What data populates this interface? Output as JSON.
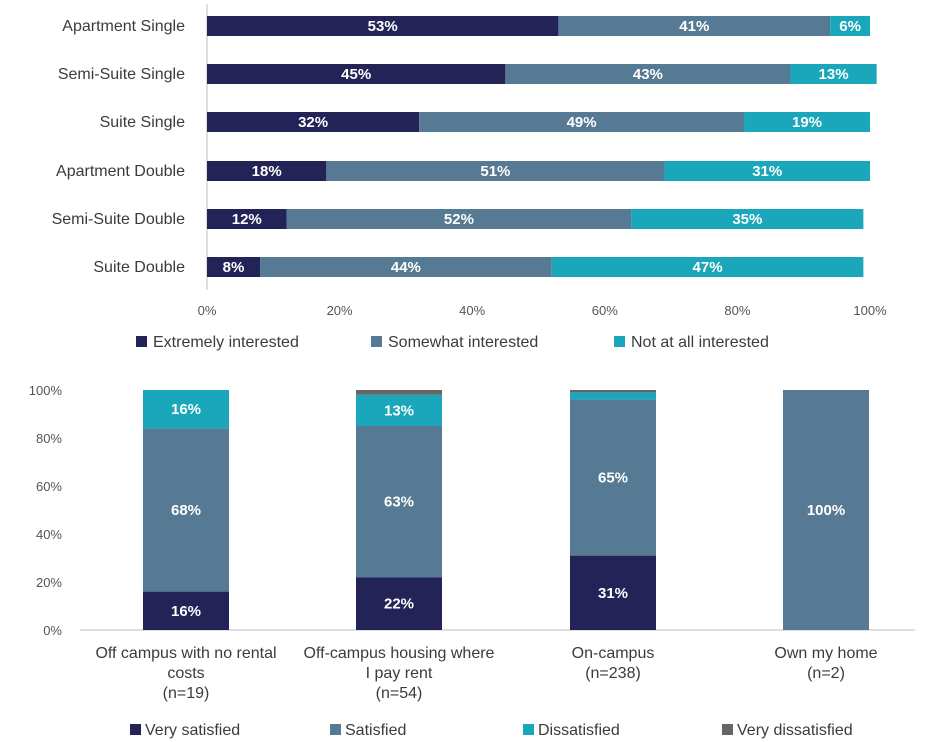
{
  "chart_data": [
    {
      "type": "bar",
      "orientation": "horizontal",
      "stacked": true,
      "categories": [
        "Apartment Single",
        "Semi-Suite Single",
        "Suite Single",
        "Apartment Double",
        "Semi-Suite Double",
        "Suite Double"
      ],
      "series": [
        {
          "name": "Extremely interested",
          "color": "#232358",
          "values": [
            53,
            45,
            32,
            18,
            12,
            8
          ],
          "labels": [
            "53%",
            "45%",
            "32%",
            "18%",
            "12%",
            "8%"
          ]
        },
        {
          "name": "Somewhat interested",
          "color": "#567a94",
          "values": [
            41,
            43,
            49,
            51,
            52,
            44
          ],
          "labels": [
            "41%",
            "43%",
            "49%",
            "51%",
            "52%",
            "44%"
          ]
        },
        {
          "name": "Not at all interested",
          "color": "#1aa6bb",
          "values": [
            6,
            13,
            19,
            31,
            35,
            47
          ],
          "labels": [
            "6%",
            "13%",
            "19%",
            "31%",
            "35%",
            "47%"
          ]
        }
      ],
      "xlim": [
        0,
        100
      ],
      "x_ticks": [
        "0%",
        "20%",
        "40%",
        "60%",
        "80%",
        "100%"
      ],
      "legend_position": "bottom"
    },
    {
      "type": "bar",
      "orientation": "vertical",
      "stacked": true,
      "categories": [
        [
          "Off campus with no rental",
          "costs",
          "(n=19)"
        ],
        [
          "Off-campus housing where",
          "I pay rent",
          "(n=54)"
        ],
        [
          "On-campus",
          "(n=238)"
        ],
        [
          "Own my home",
          "(n=2)"
        ]
      ],
      "series": [
        {
          "name": "Very satisfied",
          "color": "#232358",
          "values": [
            16,
            22,
            31,
            0
          ],
          "labels": [
            "16%",
            "22%",
            "31%",
            ""
          ]
        },
        {
          "name": "Satisfied",
          "color": "#567a94",
          "values": [
            68,
            63,
            65,
            100
          ],
          "labels": [
            "68%",
            "63%",
            "65%",
            "100%"
          ]
        },
        {
          "name": "Dissatisfied",
          "color": "#1aa6bb",
          "values": [
            16,
            13,
            3,
            0
          ],
          "labels": [
            "16%",
            "13%",
            "",
            ""
          ]
        },
        {
          "name": "Very dissatisfied",
          "color": "#666666",
          "values": [
            0,
            2,
            1,
            0
          ],
          "labels": [
            "",
            "",
            "",
            ""
          ]
        }
      ],
      "ylim": [
        0,
        100
      ],
      "y_ticks": [
        "0%",
        "20%",
        "40%",
        "60%",
        "80%",
        "100%"
      ],
      "legend_position": "bottom"
    }
  ]
}
